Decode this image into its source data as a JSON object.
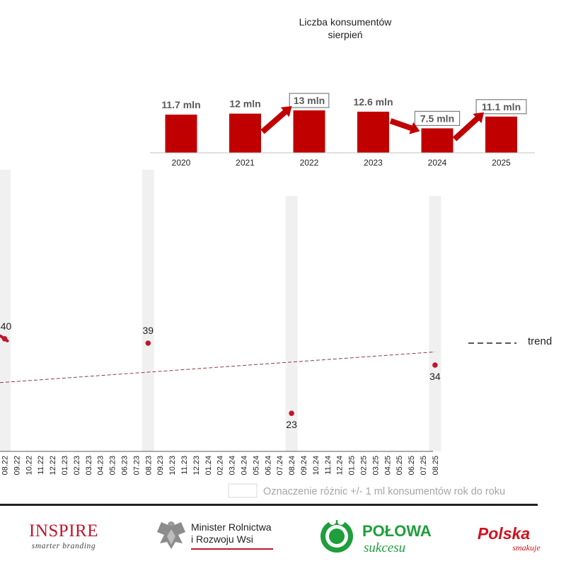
{
  "chart_data": [
    {
      "type": "bar",
      "title": "Liczba konsumentów",
      "subtitle": "sierpień",
      "categories": [
        "2020",
        "2021",
        "2022",
        "2023",
        "2024",
        "2025"
      ],
      "values": [
        11.7,
        12,
        13,
        12.6,
        7.5,
        11.1
      ],
      "data_labels": [
        "11.7 mln",
        "12 mln",
        "13 mln",
        "12.6 mln",
        "7.5 mln",
        "11.1 mln"
      ],
      "boxed_labels": [
        "2022",
        "2024",
        "2025"
      ],
      "arrows": [
        [
          "2021",
          "2022"
        ],
        [
          "2023",
          "2024"
        ],
        [
          "2024",
          "2025"
        ]
      ],
      "ylim": [
        0,
        13
      ],
      "bar_color": "#c00000"
    },
    {
      "type": "scatter",
      "x_ticks": [
        "08.22",
        "09.22",
        "10.22",
        "11.22",
        "12.22",
        "01.23",
        "02.23",
        "03.23",
        "04.23",
        "05.23",
        "06.23",
        "07.23",
        "08.23",
        "09.23",
        "10.23",
        "11.23",
        "12.23",
        "01.24",
        "02.24",
        "03.24",
        "04.24",
        "05.24",
        "06.24",
        "07.24",
        "08.24",
        "09.24",
        "10.24",
        "11.24",
        "12.24",
        "01.25",
        "02.25",
        "03.25",
        "04.25",
        "05.25",
        "06.25",
        "07.25",
        "08.25"
      ],
      "points": [
        {
          "x": "08.22",
          "y": 40,
          "label": "40"
        },
        {
          "x": "08.23",
          "y": 39,
          "label": "39"
        },
        {
          "x": "08.24",
          "y": 23,
          "label": "23"
        },
        {
          "x": "08.25",
          "y": 34,
          "label": "34"
        }
      ],
      "highlight_periods": [
        "08.22",
        "08.23",
        "08.24",
        "08.25"
      ],
      "trend": {
        "start": 30,
        "end": 37
      },
      "legend": {
        "trend": "trend",
        "highlight": "Oznaczenie różnic +/- 1 ml konsumentów rok do roku"
      },
      "point_color": "#c0162c"
    }
  ],
  "logos": {
    "inspire": {
      "name": "INSPIRE",
      "tagline": "smarter branding"
    },
    "ministry": {
      "line1": "Minister Rolnictwa",
      "line2": "i Rozwoju Wsi"
    },
    "polowa": {
      "name": "POŁOWA",
      "sub": "sukcesu"
    },
    "polska": {
      "name": "Polska",
      "sub": "smakuje"
    }
  },
  "colors": {
    "accent": "#c00000",
    "highlight": "#f0f0f0",
    "green": "#1e9e3c"
  }
}
